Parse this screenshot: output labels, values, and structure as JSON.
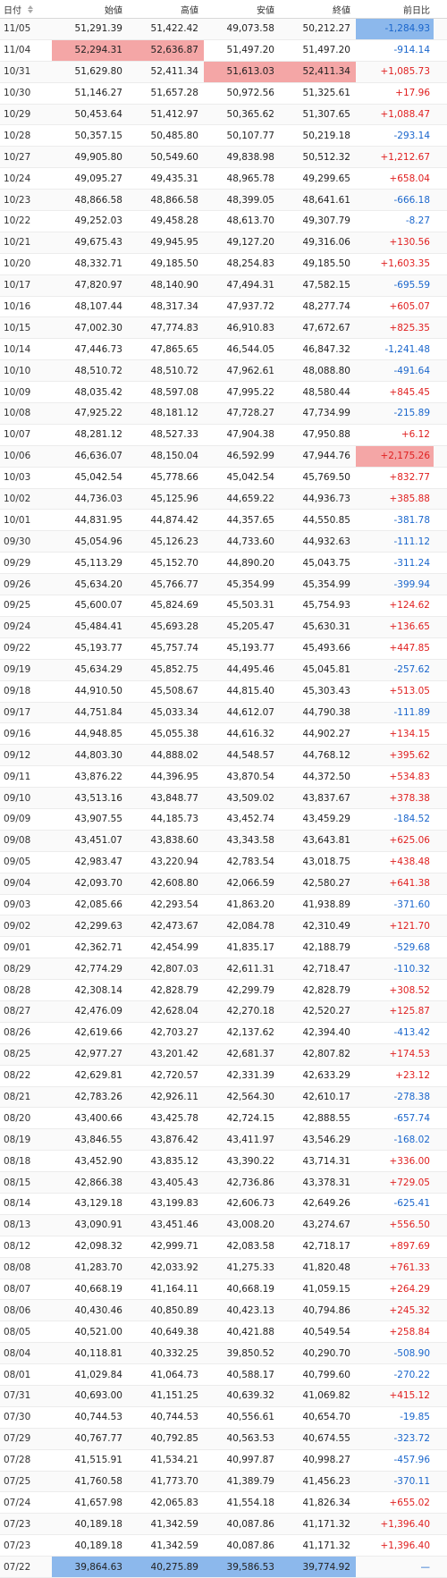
{
  "header": {
    "date": "日付",
    "open": "始値",
    "high": "高値",
    "low": "安値",
    "close": "終値",
    "change": "前日比"
  },
  "colors": {
    "up": "#e02020",
    "down": "#1a66cc",
    "highlight_red": "#f4a6a6",
    "highlight_blue": "#8cb8ec"
  },
  "rows": [
    {
      "date": "11/05",
      "open": "51,291.39",
      "high": "51,422.42",
      "low": "49,073.58",
      "close": "50,212.27",
      "change": "-1,284.93",
      "hl": {
        "change": "blue"
      }
    },
    {
      "date": "11/04",
      "open": "52,294.31",
      "high": "52,636.87",
      "low": "51,497.20",
      "close": "51,497.20",
      "change": "-914.14",
      "hl": {
        "open": "red",
        "high": "red"
      }
    },
    {
      "date": "10/31",
      "open": "51,629.80",
      "high": "52,411.34",
      "low": "51,613.03",
      "close": "52,411.34",
      "change": "+1,085.73",
      "hl": {
        "low": "red",
        "close": "red"
      }
    },
    {
      "date": "10/30",
      "open": "51,146.27",
      "high": "51,657.28",
      "low": "50,972.56",
      "close": "51,325.61",
      "change": "+17.96"
    },
    {
      "date": "10/29",
      "open": "50,453.64",
      "high": "51,412.97",
      "low": "50,365.62",
      "close": "51,307.65",
      "change": "+1,088.47"
    },
    {
      "date": "10/28",
      "open": "50,357.15",
      "high": "50,485.80",
      "low": "50,107.77",
      "close": "50,219.18",
      "change": "-293.14"
    },
    {
      "date": "10/27",
      "open": "49,905.80",
      "high": "50,549.60",
      "low": "49,838.98",
      "close": "50,512.32",
      "change": "+1,212.67"
    },
    {
      "date": "10/24",
      "open": "49,095.27",
      "high": "49,435.31",
      "low": "48,965.78",
      "close": "49,299.65",
      "change": "+658.04"
    },
    {
      "date": "10/23",
      "open": "48,866.58",
      "high": "48,866.58",
      "low": "48,399.05",
      "close": "48,641.61",
      "change": "-666.18"
    },
    {
      "date": "10/22",
      "open": "49,252.03",
      "high": "49,458.28",
      "low": "48,613.70",
      "close": "49,307.79",
      "change": "-8.27"
    },
    {
      "date": "10/21",
      "open": "49,675.43",
      "high": "49,945.95",
      "low": "49,127.20",
      "close": "49,316.06",
      "change": "+130.56"
    },
    {
      "date": "10/20",
      "open": "48,332.71",
      "high": "49,185.50",
      "low": "48,254.83",
      "close": "49,185.50",
      "change": "+1,603.35"
    },
    {
      "date": "10/17",
      "open": "47,820.97",
      "high": "48,140.90",
      "low": "47,494.31",
      "close": "47,582.15",
      "change": "-695.59"
    },
    {
      "date": "10/16",
      "open": "48,107.44",
      "high": "48,317.34",
      "low": "47,937.72",
      "close": "48,277.74",
      "change": "+605.07"
    },
    {
      "date": "10/15",
      "open": "47,002.30",
      "high": "47,774.83",
      "low": "46,910.83",
      "close": "47,672.67",
      "change": "+825.35"
    },
    {
      "date": "10/14",
      "open": "47,446.73",
      "high": "47,865.65",
      "low": "46,544.05",
      "close": "46,847.32",
      "change": "-1,241.48"
    },
    {
      "date": "10/10",
      "open": "48,510.72",
      "high": "48,510.72",
      "low": "47,962.61",
      "close": "48,088.80",
      "change": "-491.64"
    },
    {
      "date": "10/09",
      "open": "48,035.42",
      "high": "48,597.08",
      "low": "47,995.22",
      "close": "48,580.44",
      "change": "+845.45"
    },
    {
      "date": "10/08",
      "open": "47,925.22",
      "high": "48,181.12",
      "low": "47,728.27",
      "close": "47,734.99",
      "change": "-215.89"
    },
    {
      "date": "10/07",
      "open": "48,281.12",
      "high": "48,527.33",
      "low": "47,904.38",
      "close": "47,950.88",
      "change": "+6.12"
    },
    {
      "date": "10/06",
      "open": "46,636.07",
      "high": "48,150.04",
      "low": "46,592.99",
      "close": "47,944.76",
      "change": "+2,175.26",
      "hl": {
        "change": "red"
      }
    },
    {
      "date": "10/03",
      "open": "45,042.54",
      "high": "45,778.66",
      "low": "45,042.54",
      "close": "45,769.50",
      "change": "+832.77"
    },
    {
      "date": "10/02",
      "open": "44,736.03",
      "high": "45,125.96",
      "low": "44,659.22",
      "close": "44,936.73",
      "change": "+385.88"
    },
    {
      "date": "10/01",
      "open": "44,831.95",
      "high": "44,874.42",
      "low": "44,357.65",
      "close": "44,550.85",
      "change": "-381.78"
    },
    {
      "date": "09/30",
      "open": "45,054.96",
      "high": "45,126.23",
      "low": "44,733.60",
      "close": "44,932.63",
      "change": "-111.12"
    },
    {
      "date": "09/29",
      "open": "45,113.29",
      "high": "45,152.70",
      "low": "44,890.20",
      "close": "45,043.75",
      "change": "-311.24"
    },
    {
      "date": "09/26",
      "open": "45,634.20",
      "high": "45,766.77",
      "low": "45,354.99",
      "close": "45,354.99",
      "change": "-399.94"
    },
    {
      "date": "09/25",
      "open": "45,600.07",
      "high": "45,824.69",
      "low": "45,503.31",
      "close": "45,754.93",
      "change": "+124.62"
    },
    {
      "date": "09/24",
      "open": "45,484.41",
      "high": "45,693.28",
      "low": "45,205.47",
      "close": "45,630.31",
      "change": "+136.65"
    },
    {
      "date": "09/22",
      "open": "45,193.77",
      "high": "45,757.74",
      "low": "45,193.77",
      "close": "45,493.66",
      "change": "+447.85"
    },
    {
      "date": "09/19",
      "open": "45,634.29",
      "high": "45,852.75",
      "low": "44,495.46",
      "close": "45,045.81",
      "change": "-257.62"
    },
    {
      "date": "09/18",
      "open": "44,910.50",
      "high": "45,508.67",
      "low": "44,815.40",
      "close": "45,303.43",
      "change": "+513.05"
    },
    {
      "date": "09/17",
      "open": "44,751.84",
      "high": "45,033.34",
      "low": "44,612.07",
      "close": "44,790.38",
      "change": "-111.89"
    },
    {
      "date": "09/16",
      "open": "44,948.85",
      "high": "45,055.38",
      "low": "44,616.32",
      "close": "44,902.27",
      "change": "+134.15"
    },
    {
      "date": "09/12",
      "open": "44,803.30",
      "high": "44,888.02",
      "low": "44,548.57",
      "close": "44,768.12",
      "change": "+395.62"
    },
    {
      "date": "09/11",
      "open": "43,876.22",
      "high": "44,396.95",
      "low": "43,870.54",
      "close": "44,372.50",
      "change": "+534.83"
    },
    {
      "date": "09/10",
      "open": "43,513.16",
      "high": "43,848.77",
      "low": "43,509.02",
      "close": "43,837.67",
      "change": "+378.38"
    },
    {
      "date": "09/09",
      "open": "43,907.55",
      "high": "44,185.73",
      "low": "43,452.74",
      "close": "43,459.29",
      "change": "-184.52"
    },
    {
      "date": "09/08",
      "open": "43,451.07",
      "high": "43,838.60",
      "low": "43,343.58",
      "close": "43,643.81",
      "change": "+625.06"
    },
    {
      "date": "09/05",
      "open": "42,983.47",
      "high": "43,220.94",
      "low": "42,783.54",
      "close": "43,018.75",
      "change": "+438.48"
    },
    {
      "date": "09/04",
      "open": "42,093.70",
      "high": "42,608.80",
      "low": "42,066.59",
      "close": "42,580.27",
      "change": "+641.38"
    },
    {
      "date": "09/03",
      "open": "42,085.66",
      "high": "42,293.54",
      "low": "41,863.20",
      "close": "41,938.89",
      "change": "-371.60"
    },
    {
      "date": "09/02",
      "open": "42,299.63",
      "high": "42,473.67",
      "low": "42,084.78",
      "close": "42,310.49",
      "change": "+121.70"
    },
    {
      "date": "09/01",
      "open": "42,362.71",
      "high": "42,454.99",
      "low": "41,835.17",
      "close": "42,188.79",
      "change": "-529.68"
    },
    {
      "date": "08/29",
      "open": "42,774.29",
      "high": "42,807.03",
      "low": "42,611.31",
      "close": "42,718.47",
      "change": "-110.32"
    },
    {
      "date": "08/28",
      "open": "42,308.14",
      "high": "42,828.79",
      "low": "42,299.79",
      "close": "42,828.79",
      "change": "+308.52"
    },
    {
      "date": "08/27",
      "open": "42,476.09",
      "high": "42,628.04",
      "low": "42,270.18",
      "close": "42,520.27",
      "change": "+125.87"
    },
    {
      "date": "08/26",
      "open": "42,619.66",
      "high": "42,703.27",
      "low": "42,137.62",
      "close": "42,394.40",
      "change": "-413.42"
    },
    {
      "date": "08/25",
      "open": "42,977.27",
      "high": "43,201.42",
      "low": "42,681.37",
      "close": "42,807.82",
      "change": "+174.53"
    },
    {
      "date": "08/22",
      "open": "42,629.81",
      "high": "42,720.57",
      "low": "42,331.39",
      "close": "42,633.29",
      "change": "+23.12"
    },
    {
      "date": "08/21",
      "open": "42,783.26",
      "high": "42,926.11",
      "low": "42,564.30",
      "close": "42,610.17",
      "change": "-278.38"
    },
    {
      "date": "08/20",
      "open": "43,400.66",
      "high": "43,425.78",
      "low": "42,724.15",
      "close": "42,888.55",
      "change": "-657.74"
    },
    {
      "date": "08/19",
      "open": "43,846.55",
      "high": "43,876.42",
      "low": "43,411.97",
      "close": "43,546.29",
      "change": "-168.02"
    },
    {
      "date": "08/18",
      "open": "43,452.90",
      "high": "43,835.12",
      "low": "43,390.22",
      "close": "43,714.31",
      "change": "+336.00"
    },
    {
      "date": "08/15",
      "open": "42,866.38",
      "high": "43,405.43",
      "low": "42,736.86",
      "close": "43,378.31",
      "change": "+729.05"
    },
    {
      "date": "08/14",
      "open": "43,129.18",
      "high": "43,199.83",
      "low": "42,606.73",
      "close": "42,649.26",
      "change": "-625.41"
    },
    {
      "date": "08/13",
      "open": "43,090.91",
      "high": "43,451.46",
      "low": "43,008.20",
      "close": "43,274.67",
      "change": "+556.50"
    },
    {
      "date": "08/12",
      "open": "42,098.32",
      "high": "42,999.71",
      "low": "42,083.58",
      "close": "42,718.17",
      "change": "+897.69"
    },
    {
      "date": "08/08",
      "open": "41,283.70",
      "high": "42,033.92",
      "low": "41,275.33",
      "close": "41,820.48",
      "change": "+761.33"
    },
    {
      "date": "08/07",
      "open": "40,668.19",
      "high": "41,164.11",
      "low": "40,668.19",
      "close": "41,059.15",
      "change": "+264.29"
    },
    {
      "date": "08/06",
      "open": "40,430.46",
      "high": "40,850.89",
      "low": "40,423.13",
      "close": "40,794.86",
      "change": "+245.32"
    },
    {
      "date": "08/05",
      "open": "40,521.00",
      "high": "40,649.38",
      "low": "40,421.88",
      "close": "40,549.54",
      "change": "+258.84"
    },
    {
      "date": "08/04",
      "open": "40,118.81",
      "high": "40,332.25",
      "low": "39,850.52",
      "close": "40,290.70",
      "change": "-508.90"
    },
    {
      "date": "08/01",
      "open": "41,029.84",
      "high": "41,064.73",
      "low": "40,588.17",
      "close": "40,799.60",
      "change": "-270.22"
    },
    {
      "date": "07/31",
      "open": "40,693.00",
      "high": "41,151.25",
      "low": "40,639.32",
      "close": "41,069.82",
      "change": "+415.12"
    },
    {
      "date": "07/30",
      "open": "40,744.53",
      "high": "40,744.53",
      "low": "40,556.61",
      "close": "40,654.70",
      "change": "-19.85"
    },
    {
      "date": "07/29",
      "open": "40,767.77",
      "high": "40,792.85",
      "low": "40,563.53",
      "close": "40,674.55",
      "change": "-323.72"
    },
    {
      "date": "07/28",
      "open": "41,515.91",
      "high": "41,534.21",
      "low": "40,997.87",
      "close": "40,998.27",
      "change": "-457.96"
    },
    {
      "date": "07/25",
      "open": "41,760.58",
      "high": "41,773.70",
      "low": "41,389.79",
      "close": "41,456.23",
      "change": "-370.11"
    },
    {
      "date": "07/24",
      "open": "41,657.98",
      "high": "42,065.83",
      "low": "41,554.18",
      "close": "41,826.34",
      "change": "+655.02"
    },
    {
      "date": "07/23",
      "open": "40,189.18",
      "high": "41,342.59",
      "low": "40,087.86",
      "close": "41,171.32",
      "change": "+1,396.40"
    },
    {
      "date": "07/23",
      "open": "40,189.18",
      "high": "41,342.59",
      "low": "40,087.86",
      "close": "41,171.32",
      "change": "+1,396.40"
    },
    {
      "date": "07/22",
      "open": "39,864.63",
      "high": "40,275.89",
      "low": "39,586.53",
      "close": "39,774.92",
      "change": "—",
      "hl": {
        "open": "blue",
        "high": "blue",
        "low": "blue",
        "close": "blue"
      }
    }
  ]
}
